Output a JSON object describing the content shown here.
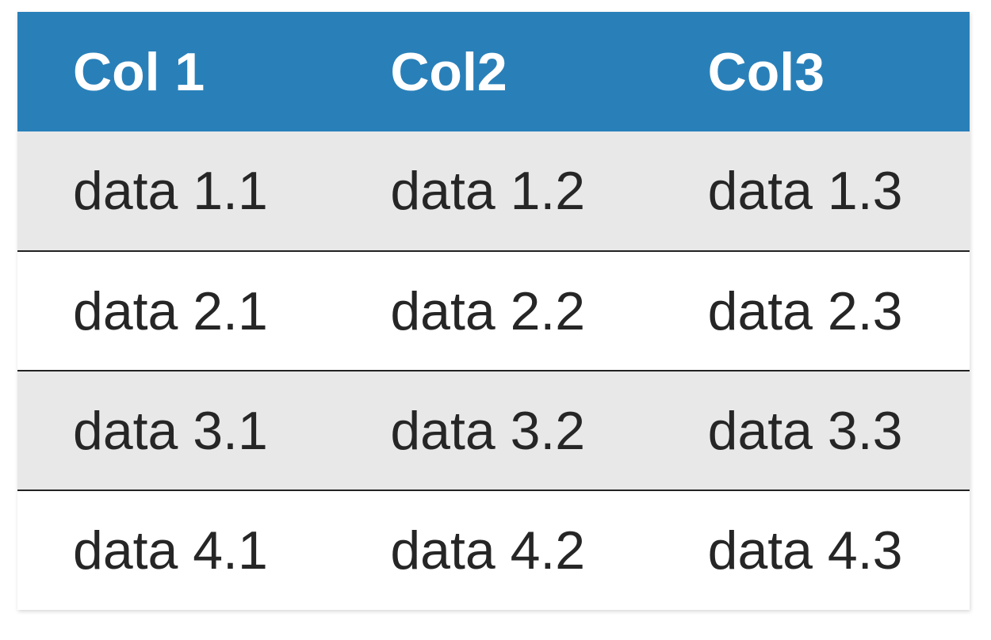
{
  "page": {
    "background_color": "#ffffff"
  },
  "chart_data": {
    "type": "table",
    "headers": [
      "Col 1",
      "Col2",
      "Col3"
    ],
    "rows": [
      [
        "data 1.1",
        "data 1.2",
        "data 1.3"
      ],
      [
        "data 2.1",
        "data 2.2",
        "data 2.3"
      ],
      [
        "data 3.1",
        "data 3.2",
        "data 3.3"
      ],
      [
        "data 4.1",
        "data 4.2",
        "data 4.3"
      ]
    ],
    "style": {
      "header_background": "#2980b9",
      "header_text_color": "#ffffff",
      "alt_row_background": "#e8e8e8",
      "row_background": "#ffffff",
      "body_text_color": "#262626",
      "row_divider_color": "#222222"
    },
    "layout_hints": {
      "striped": true,
      "first_data_row_shaded": true,
      "dividers_between_data_rows_only": true
    }
  }
}
